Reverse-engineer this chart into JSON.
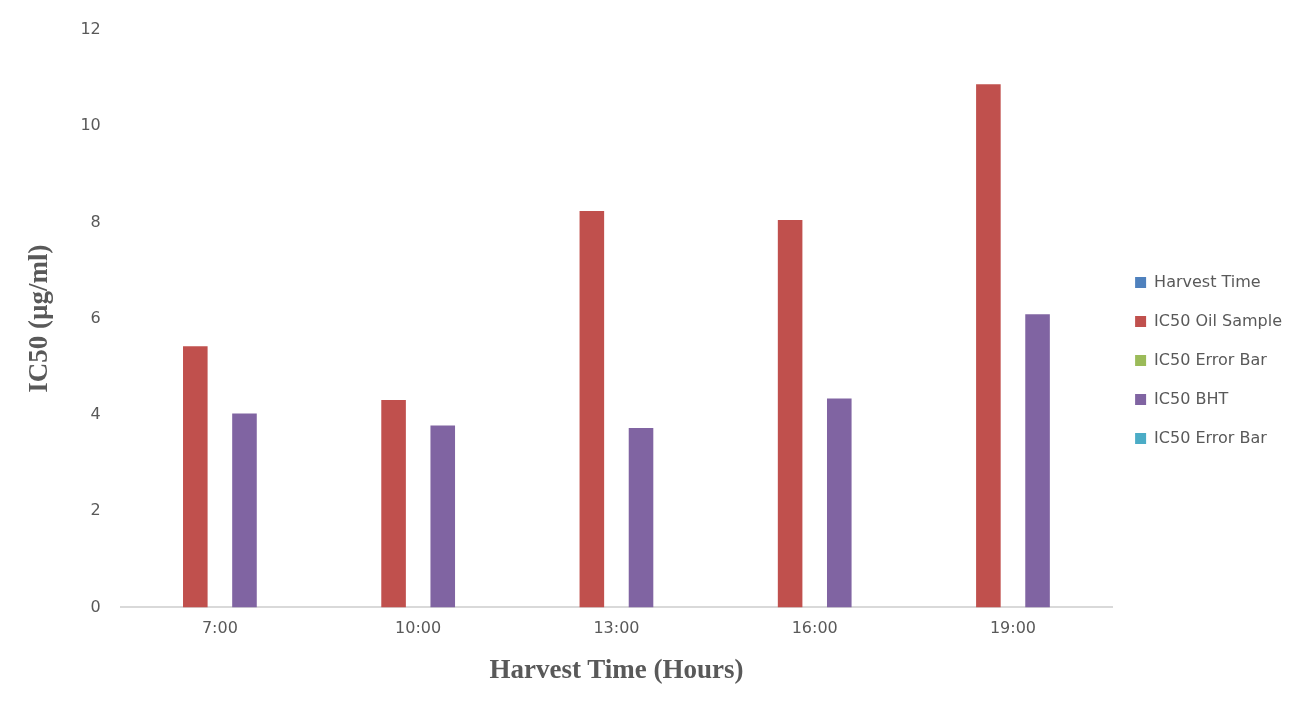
{
  "chart_data": {
    "type": "bar",
    "xlabel": "Harvest Time (Hours)",
    "ylabel": "IC50 (µg/ml)",
    "categories": [
      "7:00",
      "10:00",
      "13:00",
      "16:00",
      "19:00"
    ],
    "series": [
      {
        "name": "Harvest Time",
        "color": "#4f81bd",
        "values": [
          null,
          null,
          null,
          null,
          null
        ]
      },
      {
        "name": "IC50 Oil Sample",
        "color": "#c0504d",
        "values": [
          5.43,
          4.31,
          8.24,
          8.05,
          10.87
        ]
      },
      {
        "name": "IC50 Error Bar",
        "color": "#9bbb59",
        "values": [
          null,
          null,
          null,
          null,
          null
        ]
      },
      {
        "name": "IC50 BHT",
        "color": "#8064a2",
        "values": [
          4.03,
          3.78,
          3.73,
          4.34,
          6.09
        ]
      },
      {
        "name": "IC50 Error Bar",
        "color": "#4bacc6",
        "values": [
          null,
          null,
          null,
          null,
          null
        ]
      }
    ],
    "ylim": [
      0,
      12
    ],
    "yticks": [
      0,
      2,
      4,
      6,
      8,
      10,
      12
    ],
    "grid": false,
    "legend": "right"
  }
}
